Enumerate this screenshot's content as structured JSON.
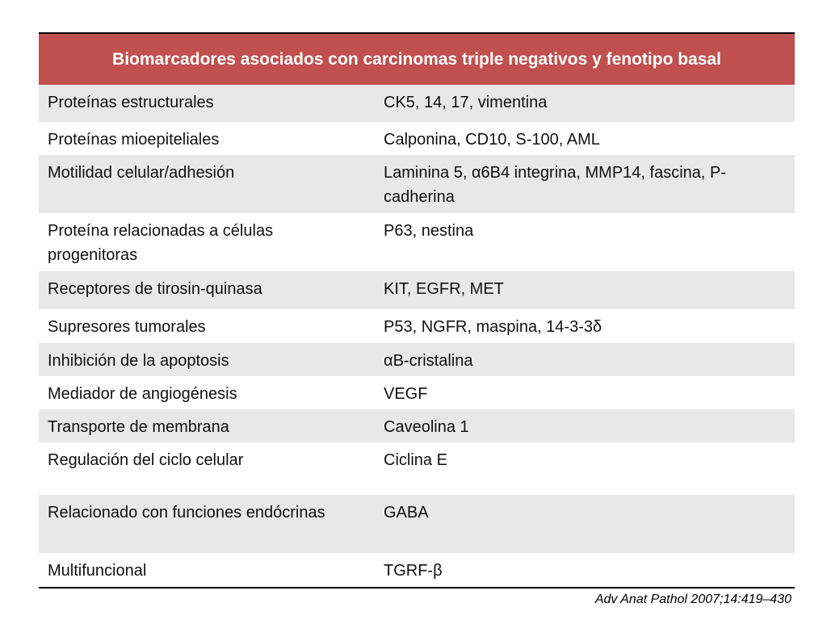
{
  "table": {
    "header": "Biomarcadores asociados con carcinomas triple negativos y fenotipo basal",
    "rows": [
      [
        "Proteínas estructurales",
        "CK5, 14, 17, vimentina"
      ],
      [
        "Proteínas mioepiteliales",
        "Calponina, CD10, S-100, AML"
      ],
      [
        "Motilidad celular/adhesión",
        "Laminina 5, α6B4 integrina, MMP14, fascina, P-cadherina"
      ],
      [
        "Proteína relacionadas a células progenitoras",
        "P63, nestina"
      ],
      [
        "Receptores de tirosin-quinasa",
        "KIT, EGFR, MET"
      ],
      [
        "Supresores tumorales",
        "P53, NGFR, maspina, 14-3-3δ"
      ],
      [
        "Inhibición de la apoptosis",
        "αB-cristalina"
      ],
      [
        "Mediador de angiogénesis",
        "VEGF"
      ],
      [
        "Transporte de membrana",
        "Caveolina 1"
      ],
      [
        "Regulación del ciclo celular",
        "Ciclina E"
      ],
      [
        "Relacionado con funciones endócrinas",
        "GABA"
      ],
      [
        "Multifuncional",
        "TGRF-β"
      ]
    ]
  },
  "citation": "Adv Anat Pathol 2007;14:419–430"
}
